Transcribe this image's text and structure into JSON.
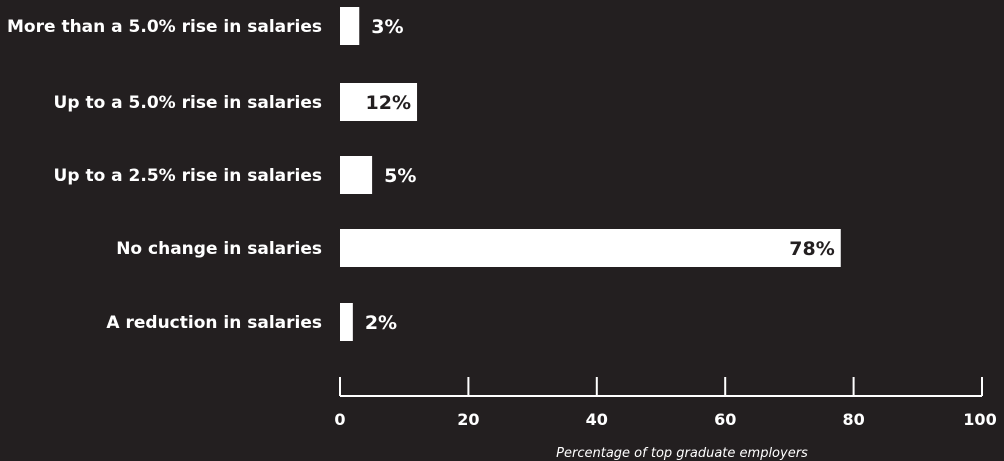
{
  "colors": {
    "background": "#231f20",
    "bar": "#ffffff",
    "text": "#ffffff",
    "label_inside_bar": "#231f20"
  },
  "chart_data": {
    "type": "bar",
    "orientation": "horizontal",
    "categories": [
      "More than a 5.0% rise in salaries",
      "Up to a 5.0% rise in salaries",
      "Up to a 2.5% rise in salaries",
      "No change in salaries",
      "A reduction in salaries"
    ],
    "values": [
      3,
      12,
      5,
      78,
      2
    ],
    "value_labels": [
      "3%",
      "12%",
      "5%",
      "78%",
      "2%"
    ],
    "xlabel": "Percentage of top graduate employers",
    "xlim": [
      0,
      100
    ],
    "xticks": [
      0,
      20,
      40,
      60,
      80,
      100
    ],
    "xtick_labels": [
      "0",
      "20",
      "40",
      "60",
      "80",
      "100"
    ],
    "grid": false,
    "legend": "none"
  }
}
